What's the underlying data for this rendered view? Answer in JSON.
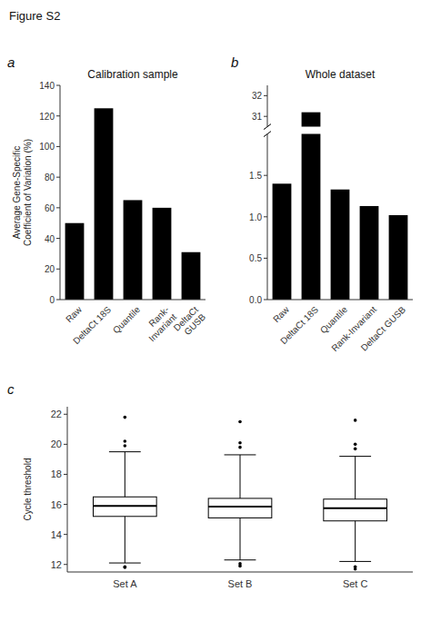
{
  "title": "Figure S2",
  "chart_data": [
    {
      "type": "bar",
      "annotations": [
        "a"
      ],
      "title": "Calibration sample",
      "categories": [
        "Raw",
        "DeltaCt 18S",
        "Quantile",
        "Rank-\nInvariant",
        "DeltaCt\nGUSB"
      ],
      "values": [
        50,
        125,
        65,
        60,
        31
      ],
      "color": "#000000",
      "ylim": [
        0,
        140
      ],
      "yticks": [
        0,
        20,
        40,
        60,
        80,
        100,
        120,
        140
      ],
      "ylabel": "Average Gene-Specific\nCoefficient of Variation (%)"
    },
    {
      "type": "bar",
      "annotations": [
        "b"
      ],
      "title": "Whole dataset",
      "categories": [
        "Raw",
        "DeltaCt 18S",
        "Quantile",
        "Rank-Invariant",
        "DeltaCt GUSB"
      ],
      "values": [
        1.4,
        31.2,
        1.33,
        1.13,
        1.02
      ],
      "color": "#000000",
      "ylim": [
        [
          0.0,
          2.0
        ],
        [
          30.5,
          32.5
        ]
      ],
      "yticks": [
        [
          {
            "value": 0,
            "label": "0.0"
          },
          0.5,
          {
            "value": 1,
            "label": "1.0"
          },
          1.5
        ],
        [
          31,
          32
        ]
      ]
    },
    {
      "type": "box",
      "annotations": [
        "c"
      ],
      "categories": [
        "Set A",
        "Set B",
        "Set C"
      ],
      "ylabel": "Cycle threshold",
      "ylim": [
        11.5,
        22.5
      ],
      "yticks": [
        12,
        14,
        16,
        18,
        20,
        22
      ],
      "color": "#000000",
      "boxes": [
        {
          "low": 12.1,
          "q1": 15.2,
          "median": 15.9,
          "q3": 16.5,
          "high": 19.5,
          "fliers": [
            11.8,
            11.85,
            19.9,
            20.2,
            21.8
          ]
        },
        {
          "low": 12.3,
          "q1": 15.1,
          "median": 15.85,
          "q3": 16.4,
          "high": 19.3,
          "fliers": [
            11.9,
            12.05,
            19.8,
            20.1,
            21.5
          ]
        },
        {
          "low": 12.2,
          "q1": 14.9,
          "median": 15.75,
          "q3": 16.35,
          "high": 19.2,
          "fliers": [
            11.7,
            11.85,
            19.7,
            20.0,
            21.6
          ]
        }
      ]
    }
  ]
}
